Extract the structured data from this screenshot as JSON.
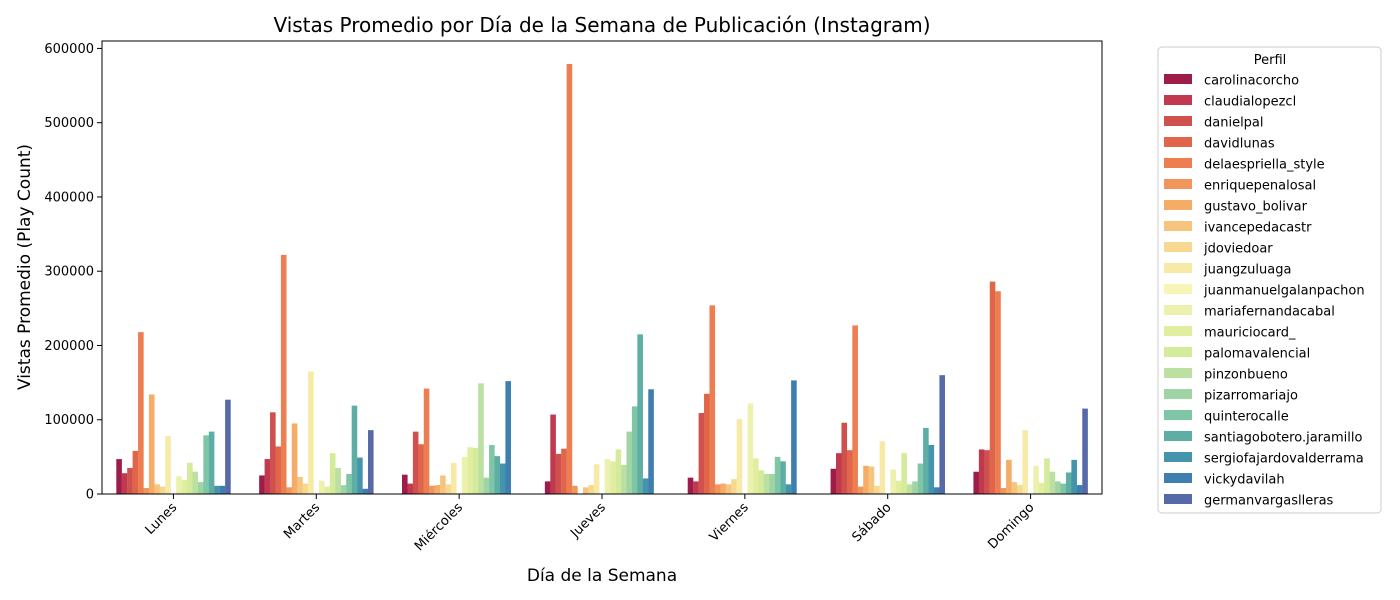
{
  "chart_data": {
    "type": "bar",
    "title": "Vistas Promedio por Día de la Semana de Publicación (Instagram)",
    "xlabel": "Día de la Semana",
    "ylabel": "Vistas Promedio (Play Count)",
    "ylim": [
      0,
      610000
    ],
    "yticks": [
      0,
      100000,
      200000,
      300000,
      400000,
      500000,
      600000
    ],
    "ytick_labels": [
      "0",
      "100000",
      "200000",
      "300000",
      "400000",
      "500000",
      "600000"
    ],
    "grid": false,
    "legend_title": "Perfil",
    "legend_position": "outside-right",
    "categories": [
      "Lunes",
      "Martes",
      "Miércoles",
      "Jueves",
      "Viernes",
      "Sábado",
      "Domingo"
    ],
    "series": [
      {
        "name": "carolinacorcho",
        "color": "#9e1c4a",
        "values": [
          47000,
          25000,
          26000,
          17000,
          22000,
          34000,
          30000
        ]
      },
      {
        "name": "claudialopezcl",
        "color": "#c0394f",
        "values": [
          28000,
          47000,
          14000,
          107000,
          17000,
          55000,
          60000
        ]
      },
      {
        "name": "danielpal",
        "color": "#d0504e",
        "values": [
          35000,
          110000,
          84000,
          54000,
          109000,
          96000,
          59000
        ]
      },
      {
        "name": "davidlunas",
        "color": "#e0654a",
        "values": [
          58000,
          64000,
          67000,
          61000,
          135000,
          59000,
          286000
        ]
      },
      {
        "name": "delaespriella_style",
        "color": "#ec7e52",
        "values": [
          218000,
          322000,
          142000,
          579000,
          254000,
          227000,
          273000
        ]
      },
      {
        "name": "enriquepenalosal",
        "color": "#f1955b",
        "values": [
          8000,
          9000,
          11000,
          11000,
          13000,
          10000,
          8000
        ]
      },
      {
        "name": "gustavo_bolivar",
        "color": "#f5ac66",
        "values": [
          134000,
          95000,
          12000,
          0,
          14000,
          38000,
          46000
        ]
      },
      {
        "name": "ivancepedacastr",
        "color": "#f7c47d",
        "values": [
          13000,
          23000,
          25000,
          9000,
          13000,
          37000,
          16000
        ]
      },
      {
        "name": "jdoviedoar",
        "color": "#f6d890",
        "values": [
          10000,
          14000,
          13000,
          12000,
          20000,
          11000,
          12000
        ]
      },
      {
        "name": "juangzuluaga",
        "color": "#f7eaa7",
        "values": [
          78000,
          165000,
          42000,
          40000,
          101000,
          71000,
          86000
        ]
      },
      {
        "name": "juanmanuelgalanpachon",
        "color": "#f6f4b7",
        "values": [
          0,
          0,
          0,
          0,
          0,
          0,
          0
        ]
      },
      {
        "name": "mariafernandacabal",
        "color": "#ecf2ae",
        "values": [
          24000,
          18000,
          50000,
          47000,
          122000,
          33000,
          38000
        ]
      },
      {
        "name": "mauriciocard_",
        "color": "#e2ee9f",
        "values": [
          19000,
          10000,
          63000,
          44000,
          48000,
          18000,
          15000
        ]
      },
      {
        "name": "palomavalencial",
        "color": "#d3eb9b",
        "values": [
          42000,
          55000,
          62000,
          60000,
          32000,
          55000,
          48000
        ]
      },
      {
        "name": "pinzonbueno",
        "color": "#bbe0a2",
        "values": [
          30000,
          35000,
          149000,
          39000,
          27000,
          13000,
          30000
        ]
      },
      {
        "name": "pizarromariajo",
        "color": "#9fd5a5",
        "values": [
          16000,
          12000,
          22000,
          84000,
          27000,
          17000,
          17000
        ]
      },
      {
        "name": "quinterocalle",
        "color": "#7fc6a6",
        "values": [
          79000,
          27000,
          66000,
          118000,
          50000,
          41000,
          14000
        ]
      },
      {
        "name": "santiagobotero.jaramillo",
        "color": "#5eaea6",
        "values": [
          84000,
          119000,
          51000,
          215000,
          44000,
          89000,
          29000
        ]
      },
      {
        "name": "sergiofajardovalderrama",
        "color": "#4494ac",
        "values": [
          11000,
          49000,
          41000,
          21000,
          13000,
          66000,
          46000
        ]
      },
      {
        "name": "vickydavilah",
        "color": "#3e7fb0",
        "values": [
          11000,
          7000,
          152000,
          141000,
          153000,
          9000,
          12000
        ]
      },
      {
        "name": "germanvargaslleras",
        "color": "#566aa8",
        "values": [
          127000,
          86000,
          0,
          0,
          0,
          160000,
          115000
        ]
      }
    ]
  }
}
